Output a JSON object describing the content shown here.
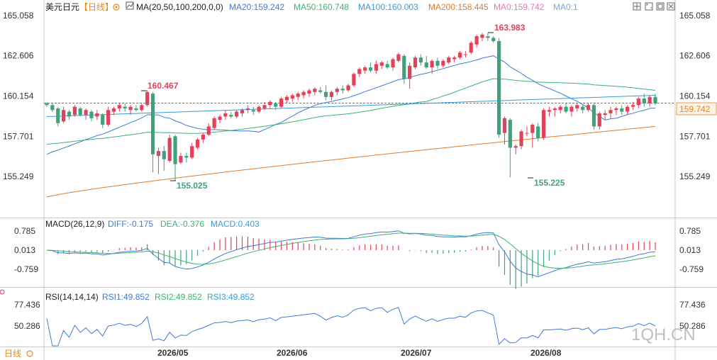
{
  "header": {
    "symbol": "美元日元",
    "period": "【日线】",
    "ma_label": "MA(20,50,100,200,0,0)",
    "ma20": "MA20:159.242",
    "ma50": "MA50:160.748",
    "ma100": "MA100:160.003",
    "ma200": "MA200:158.445",
    "ma0a": "MA0:159.742",
    "ma0b": "MA0:1"
  },
  "macd_header": {
    "label": "MACD(26,12,9)",
    "diff": "DIFF:-0.175",
    "dea": "DEA:-0.376",
    "macd": "MACD:0.403"
  },
  "rsi_header": {
    "label": "RSI(14,14,14)",
    "rsi1": "RSI1:49.852",
    "rsi2": "RSI2:49.852",
    "rsi3": "RSI3:49.852"
  },
  "bottom_left_label": "日线",
  "watermark": "1QH.CN",
  "current_price": "159.742",
  "annotations": {
    "high1": "160.467",
    "low1": "155.025",
    "high2": "163.983",
    "low2": "155.225"
  },
  "chart_data": {
    "type": "candlestick",
    "price_axis_ticks": [
      "165.058",
      "162.606",
      "160.154",
      "157.701",
      "155.249"
    ],
    "macd_axis_ticks": [
      "0.785",
      "0.013",
      "-0.759"
    ],
    "rsi_axis_ticks": [
      "77.436",
      "50.286"
    ],
    "date_ticks": [
      "2026/05",
      "2026/06",
      "2026/07",
      "2026/08"
    ],
    "ylim": [
      153.0,
      165.6
    ],
    "candles": [
      [
        159.7,
        159.8,
        159.5,
        159.6
      ],
      [
        159.6,
        159.7,
        159.2,
        159.3
      ],
      [
        159.4,
        159.5,
        158.3,
        158.5
      ],
      [
        158.6,
        159.5,
        158.5,
        159.3
      ],
      [
        159.2,
        159.3,
        158.7,
        158.9
      ],
      [
        159.0,
        159.6,
        158.9,
        159.5
      ],
      [
        159.4,
        159.5,
        158.9,
        159.0
      ],
      [
        159.0,
        159.4,
        158.7,
        159.3
      ],
      [
        159.2,
        159.3,
        158.6,
        158.8
      ],
      [
        158.9,
        159.3,
        158.7,
        159.1
      ],
      [
        159.0,
        159.1,
        158.2,
        158.4
      ],
      [
        158.4,
        159.5,
        158.3,
        159.3
      ],
      [
        159.2,
        159.5,
        159.0,
        159.4
      ],
      [
        159.4,
        159.7,
        159.2,
        159.6
      ],
      [
        159.5,
        159.7,
        159.2,
        159.4
      ],
      [
        159.3,
        159.6,
        159.0,
        159.5
      ],
      [
        159.4,
        159.6,
        159.2,
        159.3
      ],
      [
        159.3,
        159.7,
        159.2,
        159.6
      ],
      [
        159.6,
        160.5,
        159.5,
        160.4
      ],
      [
        160.3,
        160.4,
        155.5,
        156.6
      ],
      [
        156.5,
        157.0,
        155.4,
        156.8
      ],
      [
        156.8,
        157.1,
        155.6,
        156.3
      ],
      [
        156.2,
        157.8,
        156.1,
        157.6
      ],
      [
        157.7,
        157.8,
        155.0,
        156.0
      ],
      [
        156.1,
        156.7,
        156.0,
        156.5
      ],
      [
        156.5,
        156.7,
        156.1,
        156.4
      ],
      [
        156.4,
        157.3,
        156.3,
        157.1
      ],
      [
        157.0,
        157.6,
        156.9,
        157.5
      ],
      [
        157.5,
        157.9,
        157.3,
        157.8
      ],
      [
        157.8,
        158.5,
        157.7,
        158.3
      ],
      [
        158.2,
        158.9,
        158.1,
        158.8
      ],
      [
        158.7,
        159.0,
        158.5,
        158.9
      ],
      [
        158.9,
        159.3,
        158.7,
        159.1
      ],
      [
        159.0,
        159.2,
        158.8,
        158.9
      ],
      [
        158.9,
        159.3,
        158.8,
        159.2
      ],
      [
        159.1,
        159.4,
        158.9,
        159.3
      ],
      [
        159.3,
        159.6,
        159.1,
        159.4
      ],
      [
        159.3,
        159.5,
        159.0,
        159.2
      ],
      [
        159.2,
        159.6,
        159.1,
        159.5
      ],
      [
        159.4,
        159.8,
        159.3,
        159.6
      ],
      [
        159.6,
        159.9,
        159.4,
        159.8
      ],
      [
        159.7,
        159.8,
        159.3,
        159.5
      ],
      [
        159.5,
        160.1,
        159.4,
        160.0
      ],
      [
        159.9,
        160.2,
        159.7,
        160.1
      ],
      [
        160.0,
        160.3,
        159.8,
        160.2
      ],
      [
        160.1,
        160.4,
        159.9,
        160.3
      ],
      [
        160.2,
        160.5,
        160.0,
        160.4
      ],
      [
        160.3,
        160.6,
        160.1,
        160.5
      ],
      [
        160.4,
        160.7,
        160.2,
        160.6
      ],
      [
        160.5,
        160.7,
        160.3,
        160.4
      ],
      [
        160.4,
        160.8,
        159.9,
        160.1
      ],
      [
        160.1,
        160.5,
        159.9,
        160.4
      ],
      [
        160.4,
        160.7,
        160.2,
        160.6
      ],
      [
        160.6,
        160.8,
        160.3,
        160.5
      ],
      [
        160.5,
        160.9,
        160.4,
        160.8
      ],
      [
        160.8,
        161.6,
        160.7,
        161.5
      ],
      [
        161.5,
        161.9,
        161.3,
        161.8
      ],
      [
        161.7,
        162.0,
        161.5,
        161.9
      ],
      [
        161.9,
        162.2,
        161.6,
        161.7
      ],
      [
        161.7,
        162.3,
        161.5,
        162.1
      ],
      [
        162.0,
        162.3,
        161.8,
        162.2
      ],
      [
        162.1,
        162.3,
        161.8,
        161.9
      ],
      [
        161.9,
        162.5,
        161.7,
        162.4
      ],
      [
        162.3,
        162.8,
        162.2,
        162.7
      ],
      [
        162.6,
        162.7,
        160.9,
        161.2
      ],
      [
        161.2,
        162.2,
        160.6,
        162.0
      ],
      [
        161.9,
        162.6,
        161.8,
        162.5
      ],
      [
        162.5,
        162.7,
        162.0,
        162.2
      ],
      [
        162.2,
        162.6,
        161.8,
        161.9
      ],
      [
        161.9,
        162.4,
        161.5,
        162.3
      ],
      [
        162.3,
        162.5,
        161.8,
        162.0
      ],
      [
        162.0,
        162.4,
        161.9,
        162.3
      ],
      [
        162.2,
        162.6,
        162.1,
        162.5
      ],
      [
        162.4,
        162.6,
        162.2,
        162.5
      ],
      [
        162.5,
        162.9,
        162.4,
        162.8
      ],
      [
        162.7,
        162.9,
        162.5,
        162.7
      ],
      [
        162.8,
        163.5,
        162.7,
        163.4
      ],
      [
        163.3,
        163.9,
        163.1,
        163.8
      ],
      [
        163.7,
        164.0,
        163.5,
        163.9
      ],
      [
        163.8,
        164.0,
        163.5,
        163.7
      ],
      [
        163.7,
        163.8,
        163.4,
        163.5
      ],
      [
        163.5,
        163.7,
        157.6,
        157.8
      ],
      [
        157.9,
        158.9,
        157.2,
        158.8
      ],
      [
        158.7,
        158.8,
        155.2,
        157.0
      ],
      [
        157.0,
        157.2,
        156.6,
        157.1
      ],
      [
        157.1,
        158.1,
        156.9,
        158.0
      ],
      [
        157.9,
        158.3,
        157.7,
        157.9
      ],
      [
        157.9,
        158.5,
        157.0,
        158.4
      ],
      [
        158.3,
        158.5,
        157.4,
        157.6
      ],
      [
        157.6,
        159.4,
        157.5,
        159.3
      ],
      [
        159.2,
        159.5,
        158.9,
        159.3
      ],
      [
        159.3,
        159.5,
        158.9,
        159.4
      ],
      [
        159.3,
        159.6,
        159.1,
        159.5
      ],
      [
        159.5,
        159.7,
        159.1,
        159.2
      ],
      [
        159.2,
        159.6,
        158.9,
        159.5
      ],
      [
        159.4,
        159.7,
        159.2,
        159.6
      ],
      [
        159.5,
        159.6,
        159.1,
        159.3
      ],
      [
        159.3,
        159.7,
        159.2,
        159.6
      ],
      [
        159.6,
        159.7,
        158.1,
        158.3
      ],
      [
        158.3,
        159.2,
        158.1,
        159.1
      ],
      [
        159.0,
        159.3,
        158.7,
        159.1
      ],
      [
        159.1,
        159.5,
        158.8,
        159.3
      ],
      [
        159.3,
        159.5,
        159.0,
        159.4
      ],
      [
        159.4,
        159.6,
        159.0,
        159.2
      ],
      [
        159.2,
        159.6,
        159.0,
        159.5
      ],
      [
        159.5,
        159.8,
        159.3,
        159.6
      ],
      [
        159.6,
        160.1,
        159.4,
        160.0
      ],
      [
        160.0,
        160.3,
        159.5,
        159.7
      ],
      [
        159.7,
        160.2,
        159.5,
        160.1
      ],
      [
        160.1,
        160.3,
        159.6,
        159.7
      ]
    ]
  }
}
